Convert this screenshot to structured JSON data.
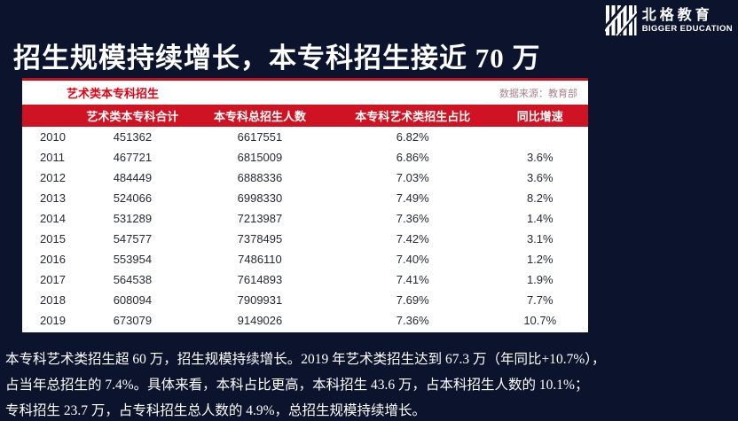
{
  "logo": {
    "name_cn": "北格教育",
    "name_en": "BIGGER EDUCATION"
  },
  "title": "招生规模持续增长，本专科招生接近 70 万",
  "panel": {
    "title": "艺术类本专科招生",
    "source": "数据来源：教育部"
  },
  "table": {
    "headers": [
      "",
      "艺术类本专科合计",
      "本专科总招生人数",
      "本专科艺术类招生占比",
      "同比增速"
    ],
    "rows": [
      [
        "2010",
        "451362",
        "6617551",
        "6.82%",
        ""
      ],
      [
        "2011",
        "467721",
        "6815009",
        "6.86%",
        "3.6%"
      ],
      [
        "2012",
        "484449",
        "6888336",
        "7.03%",
        "3.6%"
      ],
      [
        "2013",
        "524066",
        "6998330",
        "7.49%",
        "8.2%"
      ],
      [
        "2014",
        "531289",
        "7213987",
        "7.36%",
        "1.4%"
      ],
      [
        "2015",
        "547577",
        "7378495",
        "7.42%",
        "3.1%"
      ],
      [
        "2016",
        "553954",
        "7486110",
        "7.40%",
        "1.2%"
      ],
      [
        "2017",
        "564538",
        "7614893",
        "7.41%",
        "1.9%"
      ],
      [
        "2018",
        "608094",
        "7909931",
        "7.69%",
        "7.7%"
      ],
      [
        "2019",
        "673079",
        "9149026",
        "7.36%",
        "10.7%"
      ]
    ]
  },
  "footer": {
    "lines": [
      "本专科艺术类招生超 60 万，招生规模持续增长。2019 年艺术类招生达到 67.3 万（年同比+10.7%），",
      "占当年总招生的 7.4%。具体来看，本科占比更高，本科招生 43.6 万，占本科招生人数的 10.1%；",
      "专科招生 23.7 万，占专科招生总人数的 4.9%，总招生规模持续增长。"
    ]
  },
  "colors": {
    "background": "#0c132d",
    "accent_red": "#cf1322",
    "panel_title_red": "#e60013",
    "source_text": "#a6838d",
    "table_text": "#262a33",
    "text_white": "#ffffff"
  },
  "chart_data": {
    "type": "table",
    "title": "艺术类本专科招生",
    "source": "数据来源：教育部",
    "columns": [
      "",
      "艺术类本专科合计",
      "本专科总招生人数",
      "本专科艺术类招生占比",
      "同比增速"
    ],
    "rows": [
      [
        "2010",
        451362,
        6617551,
        "6.82%",
        null
      ],
      [
        "2011",
        467721,
        6815009,
        "6.86%",
        "3.6%"
      ],
      [
        "2012",
        484449,
        6888336,
        "7.03%",
        "3.6%"
      ],
      [
        "2013",
        524066,
        6998330,
        "7.49%",
        "8.2%"
      ],
      [
        "2014",
        531289,
        7213987,
        "7.36%",
        "1.4%"
      ],
      [
        "2015",
        547577,
        7378495,
        "7.42%",
        "3.1%"
      ],
      [
        "2016",
        553954,
        7486110,
        "7.40%",
        "1.2%"
      ],
      [
        "2017",
        564538,
        7614893,
        "7.41%",
        "1.9%"
      ],
      [
        "2018",
        608094,
        7909931,
        "7.69%",
        "7.7%"
      ],
      [
        "2019",
        673079,
        9149026,
        "7.36%",
        "10.7%"
      ]
    ]
  }
}
